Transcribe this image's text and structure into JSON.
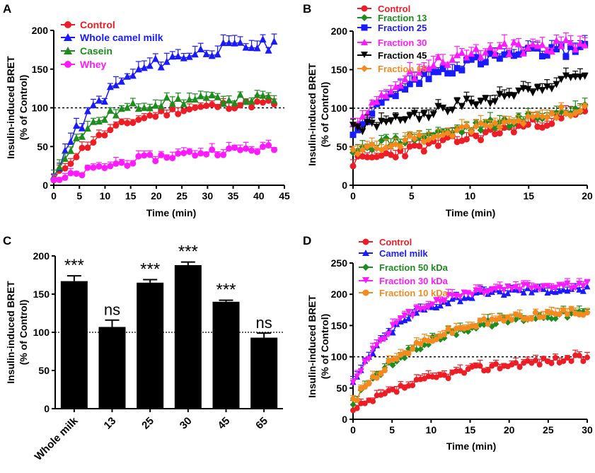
{
  "chart_data": [
    {
      "panel": "A",
      "type": "line",
      "xlabel": "Time (min)",
      "ylabel": "Insulin-induced BRET",
      "ylabel2": "(% of Control)",
      "xlim": [
        0,
        45
      ],
      "ylim": [
        0,
        200
      ],
      "xticks": [
        0,
        5,
        10,
        15,
        20,
        25,
        30,
        35,
        40,
        45
      ],
      "yticks": [
        0,
        50,
        100,
        150,
        200
      ],
      "reference_line": 100,
      "legend_position": "top-left",
      "series": [
        {
          "name": "Control",
          "color": "#ee1c24",
          "marker": "circle",
          "t_end": 43,
          "n": 40,
          "curve": {
            "kind": "sat",
            "a": 108,
            "tau": 11,
            "y0": 5
          },
          "noise": 5
        },
        {
          "name": "Whole camel milk",
          "color": "#1a1aff",
          "marker": "triangle-up",
          "t_end": 43,
          "n": 40,
          "curve": {
            "kind": "sat",
            "a": 185,
            "tau": 11,
            "y0": 12
          },
          "noise": 8
        },
        {
          "name": "Casein",
          "color": "#1e8c1e",
          "marker": "triangle-up",
          "t_end": 43,
          "n": 40,
          "curve": {
            "kind": "sat",
            "a": 112,
            "tau": 7,
            "y0": 12
          },
          "noise": 6
        },
        {
          "name": "Whey",
          "color": "#ff1aff",
          "marker": "circle",
          "t_end": 43,
          "n": 40,
          "curve": {
            "kind": "sat",
            "a": 52,
            "tau": 18,
            "y0": 3
          },
          "noise": 5
        }
      ]
    },
    {
      "panel": "B",
      "type": "line",
      "xlabel": "Time (min)",
      "ylabel": "Insulin-induced BRET",
      "ylabel2": "(% of Control)",
      "xlim": [
        0,
        20
      ],
      "ylim": [
        0,
        200
      ],
      "xticks": [
        0,
        5,
        10,
        15,
        20
      ],
      "yticks": [
        0,
        50,
        100,
        150,
        200
      ],
      "reference_line": 100,
      "legend_position": "top-left",
      "series": [
        {
          "name": "Control",
          "color": "#ee1c24",
          "marker": "circle",
          "t_end": 19.8,
          "n": 50,
          "curve": {
            "kind": "lin",
            "y0": 30,
            "k": 3.2
          },
          "noise": 7
        },
        {
          "name": "Fraction 13",
          "color": "#1e8c1e",
          "marker": "diamond",
          "t_end": 19.8,
          "n": 50,
          "curve": {
            "kind": "lin",
            "y0": 48,
            "k": 2.6
          },
          "noise": 7
        },
        {
          "name": "Fraction 25",
          "color": "#1a1aff",
          "marker": "square",
          "t_end": 19.8,
          "n": 50,
          "curve": {
            "kind": "sat",
            "a": 180,
            "tau": 6,
            "y0": 68
          },
          "noise": 8
        },
        {
          "name": "Fraction 30",
          "color": "#ff1aff",
          "marker": "triangle-up",
          "t_end": 19.8,
          "n": 50,
          "curve": {
            "kind": "sat",
            "a": 185,
            "tau": 5,
            "y0": 75
          },
          "noise": 8
        },
        {
          "name": "Fraction 45",
          "color": "#000000",
          "marker": "triangle-down",
          "t_end": 19.8,
          "n": 50,
          "curve": {
            "kind": "lin",
            "y0": 72,
            "k": 3.5
          },
          "noise": 7
        },
        {
          "name": "Fraction 65",
          "color": "#f58a1f",
          "marker": "diamond",
          "t_end": 19.8,
          "n": 50,
          "curve": {
            "kind": "lin",
            "y0": 45,
            "k": 2.8
          },
          "noise": 7
        }
      ]
    },
    {
      "panel": "C",
      "type": "bar",
      "ylabel": "Insulin-induced BRET",
      "ylabel2": "(% of Control)",
      "categories": [
        "Whole milk",
        "13",
        "25",
        "30",
        "45",
        "65"
      ],
      "values": [
        167,
        107,
        165,
        188,
        140,
        93
      ],
      "errors": [
        7,
        9,
        4,
        4,
        2,
        6
      ],
      "significance": [
        "***",
        "ns",
        "***",
        "***",
        "***",
        "ns"
      ],
      "ylim": [
        0,
        200
      ],
      "yticks": [
        0,
        50,
        100,
        150,
        200
      ],
      "reference_line": 100
    },
    {
      "panel": "D",
      "type": "line",
      "xlabel": "Time (min)",
      "ylabel": "Insulin-induced BRET",
      "ylabel2": "(% of Control)",
      "xlim": [
        0,
        30
      ],
      "ylim": [
        0,
        250
      ],
      "xticks": [
        0,
        5,
        10,
        15,
        20,
        25,
        30
      ],
      "yticks": [
        0,
        50,
        100,
        150,
        200,
        250
      ],
      "reference_line": 100,
      "legend_position": "top-left",
      "series": [
        {
          "name": "Control",
          "color": "#ee1c24",
          "marker": "circle",
          "t_end": 30,
          "n": 60,
          "curve": {
            "kind": "sat",
            "a": 105,
            "tau": 12,
            "y0": 12
          },
          "noise": 6
        },
        {
          "name": "Camel milk",
          "color": "#1a1aff",
          "marker": "triangle-up",
          "t_end": 30,
          "n": 60,
          "curve": {
            "kind": "sat",
            "a": 210,
            "tau": 6,
            "y0": 55
          },
          "noise": 6
        },
        {
          "name": "Fraction 50 kDa",
          "color": "#1e8c1e",
          "marker": "diamond",
          "t_end": 30,
          "n": 60,
          "curve": {
            "kind": "sat",
            "a": 175,
            "tau": 9,
            "y0": 25
          },
          "noise": 6
        },
        {
          "name": "Fraction 30 kDa",
          "color": "#ff1aff",
          "marker": "triangle-down",
          "t_end": 30,
          "n": 60,
          "curve": {
            "kind": "sat",
            "a": 215,
            "tau": 6,
            "y0": 55
          },
          "noise": 6
        },
        {
          "name": "Fraction 10 kDa",
          "color": "#f58a1f",
          "marker": "circle",
          "t_end": 30,
          "n": 60,
          "curve": {
            "kind": "sat",
            "a": 178,
            "tau": 9,
            "y0": 28
          },
          "noise": 6
        }
      ]
    }
  ]
}
